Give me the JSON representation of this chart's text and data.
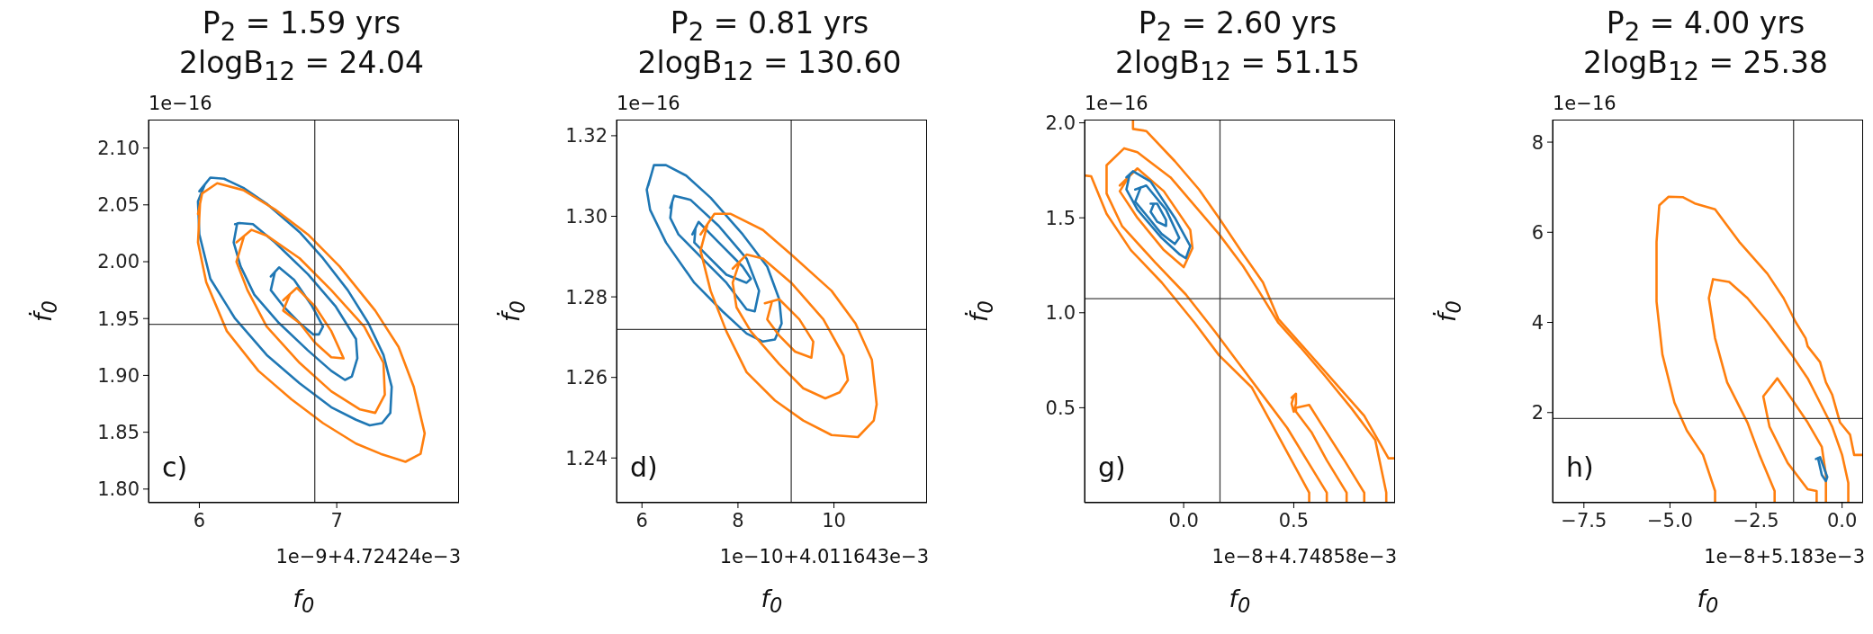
{
  "chart_data": [
    {
      "type": "line",
      "title": "P$_{2}$ = 1.59 yrs",
      "subtitle": "2logB$_{12}$ = 24.04",
      "xlabel": "f$_{0}$",
      "ylabel": "ḟ$_{0}$",
      "annotations": [
        "1e−16",
        "1e−9+4.72424e−3",
        "c)"
      ],
      "xlim": [
        5.63,
        7.89
      ],
      "xticks": [
        6,
        7
      ],
      "ylim": [
        1.788,
        2.125
      ],
      "yticks": [
        {
          "value": 1.8,
          "label": "1.80"
        },
        {
          "value": 1.85,
          "label": "1.85"
        },
        {
          "value": 1.9,
          "label": "1.90"
        },
        {
          "value": 1.95,
          "label": "1.95"
        },
        {
          "value": 2.0,
          "label": "2.00"
        },
        {
          "value": 2.05,
          "label": "2.05"
        },
        {
          "value": 2.1,
          "label": "2.10"
        }
      ],
      "ref_lines": [
        {
          "axis": "x",
          "value": 6.84,
          "color": "#404040"
        },
        {
          "axis": "y",
          "value": 1.945,
          "color": "#404040"
        }
      ],
      "series": [
        {
          "color": "#1f77b4",
          "x": [
            6.0,
            6.08,
            6.18,
            6.32,
            6.49,
            6.73,
            6.9,
            7.08,
            7.23,
            7.34,
            7.4,
            7.39,
            7.33,
            7.24,
            7.14,
            6.96,
            6.73,
            6.49,
            6.26,
            6.08,
            6.0,
            5.99,
            6.04
          ],
          "values": [
            2.062,
            2.074,
            2.073,
            2.065,
            2.051,
            2.026,
            2.003,
            1.975,
            1.946,
            1.918,
            1.89,
            1.867,
            1.858,
            1.856,
            1.861,
            1.872,
            1.893,
            1.918,
            1.95,
            1.985,
            2.024,
            2.053,
            2.068
          ]
        },
        {
          "color": "#1f77b4",
          "x": [
            6.26,
            6.29,
            6.39,
            6.55,
            6.79,
            6.99,
            7.14,
            7.15,
            7.11,
            7.06,
            6.96,
            6.79,
            6.58,
            6.4,
            6.3,
            6.25,
            6.275
          ],
          "values": [
            2.033,
            2.034,
            2.033,
            2.017,
            1.989,
            1.961,
            1.932,
            1.915,
            1.899,
            1.896,
            1.904,
            1.922,
            1.946,
            1.971,
            1.996,
            2.017,
            2.0335
          ]
        },
        {
          "color": "#1f77b4",
          "x": [
            6.52,
            6.58,
            6.69,
            6.82,
            6.9,
            6.87,
            6.83,
            6.73,
            6.61,
            6.52,
            6.55
          ],
          "values": [
            1.987,
            1.995,
            1.984,
            1.961,
            1.943,
            1.936,
            1.936,
            1.946,
            1.961,
            1.975,
            1.991
          ]
        },
        {
          "color": "#ff7f0e",
          "x": [
            5.99,
            6.02,
            6.13,
            6.32,
            6.55,
            6.79,
            7.02,
            7.28,
            7.45,
            7.56,
            7.64,
            7.61,
            7.5,
            7.32,
            7.14,
            6.9,
            6.67,
            6.43,
            6.2,
            6.05,
            5.99,
            6.005
          ],
          "values": [
            2.042,
            2.06,
            2.069,
            2.063,
            2.046,
            2.024,
            1.996,
            1.957,
            1.925,
            1.89,
            1.849,
            1.831,
            1.824,
            1.831,
            1.84,
            1.858,
            1.879,
            1.904,
            1.939,
            1.982,
            2.017,
            2.051
          ]
        },
        {
          "color": "#ff7f0e",
          "x": [
            6.27,
            6.38,
            6.49,
            6.73,
            6.96,
            7.2,
            7.34,
            7.35,
            7.28,
            7.17,
            6.96,
            6.73,
            6.49,
            6.35,
            6.27,
            6.325
          ],
          "values": [
            2.017,
            2.028,
            2.023,
            2.003,
            1.975,
            1.943,
            1.911,
            1.883,
            1.867,
            1.87,
            1.886,
            1.911,
            1.943,
            1.975,
            2.0,
            2.0225
          ]
        },
        {
          "color": "#ff7f0e",
          "x": [
            6.61,
            6.71,
            6.84,
            6.96,
            7.05,
            6.96,
            6.84,
            6.73,
            6.61,
            6.66
          ],
          "values": [
            1.966,
            1.977,
            1.961,
            1.939,
            1.915,
            1.916,
            1.929,
            1.946,
            1.957,
            1.9715
          ]
        }
      ]
    },
    {
      "type": "line",
      "title": "P$_{2}$ = 0.81 yrs",
      "subtitle": "2logB$_{12}$ = 130.60",
      "xlabel": "f$_{0}$",
      "ylabel": "ḟ$_{0}$",
      "annotations": [
        "1e−16",
        "1e−10+4.011643e−3",
        "d)"
      ],
      "xlim": [
        5.47,
        11.94
      ],
      "xticks": [
        6,
        8,
        10
      ],
      "ylim": [
        1.2289,
        1.324
      ],
      "yticks": [
        1.24,
        1.26,
        1.28,
        {
          "value": 1.3,
          "label": "1.30"
        },
        1.32
      ],
      "ref_lines": [
        {
          "axis": "x",
          "value": 9.11,
          "color": "#404040"
        },
        {
          "axis": "y",
          "value": 1.2719,
          "color": "#404040"
        }
      ],
      "series": [
        {
          "color": "#1f77b4",
          "x": [
            6.13,
            6.25,
            6.5,
            6.92,
            7.43,
            8.1,
            8.61,
            8.86,
            8.91,
            8.77,
            8.52,
            8.18,
            7.68,
            7.09,
            6.5,
            6.17,
            6.1,
            6.19
          ],
          "values": [
            1.3076,
            1.3127,
            1.3127,
            1.3101,
            1.3046,
            1.2955,
            1.2875,
            1.2794,
            1.2734,
            1.2694,
            1.2689,
            1.2709,
            1.2764,
            1.2835,
            1.2935,
            1.3016,
            1.3066,
            1.3102
          ]
        },
        {
          "color": "#1f77b4",
          "x": [
            6.59,
            6.67,
            7.01,
            7.6,
            8.18,
            8.44,
            8.35,
            8.18,
            7.76,
            7.26,
            6.76,
            6.59,
            6.63
          ],
          "values": [
            1.3021,
            1.3051,
            1.3041,
            1.2976,
            1.2895,
            1.2815,
            1.2764,
            1.2769,
            1.2835,
            1.2895,
            1.2955,
            1.2996,
            1.3036
          ]
        },
        {
          "color": "#1f77b4",
          "x": [
            7.05,
            7.18,
            7.6,
            8.1,
            8.27,
            8.18,
            7.76,
            7.34,
            7.09,
            7.115
          ],
          "values": [
            1.2955,
            1.2986,
            1.2935,
            1.2875,
            1.2845,
            1.2835,
            1.2855,
            1.2905,
            1.2935,
            1.297
          ]
        },
        {
          "color": "#ff7f0e",
          "x": [
            7.22,
            7.51,
            7.85,
            8.52,
            9.11,
            9.95,
            10.45,
            10.79,
            10.89,
            10.83,
            10.5,
            9.95,
            9.36,
            8.77,
            8.18,
            7.76,
            7.43,
            7.22,
            7.365
          ],
          "values": [
            1.2955,
            1.3006,
            1.3006,
            1.2966,
            1.2905,
            1.2815,
            1.2734,
            1.2644,
            1.2533,
            1.2493,
            1.2452,
            1.2457,
            1.2493,
            1.2543,
            1.2613,
            1.2714,
            1.2815,
            1.2915,
            1.298
          ]
        },
        {
          "color": "#ff7f0e",
          "x": [
            7.89,
            8.18,
            8.52,
            9.11,
            9.78,
            10.2,
            10.29,
            10.12,
            9.82,
            9.36,
            8.86,
            8.27,
            7.97,
            7.89,
            8.035
          ],
          "values": [
            1.287,
            1.2905,
            1.2895,
            1.2835,
            1.2744,
            1.2654,
            1.2593,
            1.2563,
            1.2548,
            1.2573,
            1.2633,
            1.2714,
            1.2774,
            1.2835,
            1.2887
          ]
        },
        {
          "color": "#ff7f0e",
          "x": [
            8.56,
            8.86,
            9.28,
            9.57,
            9.53,
            9.19,
            8.86,
            8.61,
            8.71
          ],
          "values": [
            1.2784,
            1.2794,
            1.2744,
            1.2689,
            1.2649,
            1.2664,
            1.2704,
            1.2744,
            1.2789
          ]
        }
      ]
    },
    {
      "type": "line",
      "title": "P$_{2}$ = 2.60 yrs",
      "subtitle": "2logB$_{12}$ = 51.15",
      "xlabel": "f$_{0}$",
      "ylabel": "ḟ$_{0}$",
      "annotations": [
        "1e−16",
        "1e−8+4.74858e−3",
        "g)"
      ],
      "xlim": [
        -0.45,
        0.96
      ],
      "xticks": [
        {
          "value": 0,
          "label": "0.0"
        },
        0.5
      ],
      "ylim": [
        0.0,
        2.017
      ],
      "yticks": [
        0.5,
        {
          "value": 1,
          "label": "1.0"
        },
        1.5,
        {
          "value": 2,
          "label": "2.0"
        }
      ],
      "ref_lines": [
        {
          "axis": "x",
          "value": 0.165,
          "color": "#404040"
        },
        {
          "axis": "y",
          "value": 1.074,
          "color": "#404040"
        }
      ],
      "series": [
        {
          "color": "#ff7f0e",
          "x": [
            -0.23,
            -0.23,
            -0.17,
            -0.04,
            0.07,
            0.16,
            0.27,
            0.36,
            0.43,
            0.56,
            0.69,
            0.82,
            0.93,
            0.96
          ],
          "values": [
            2.011,
            1.968,
            1.957,
            1.798,
            1.649,
            1.5,
            1.309,
            1.16,
            0.968,
            0.798,
            0.628,
            0.457,
            0.234,
            0.234
          ]
        },
        {
          "color": "#ff7f0e",
          "x": [
            -0.45,
            -0.42,
            -0.35,
            -0.24,
            -0.1,
            0.05,
            0.16,
            0.31,
            0.4,
            0.49,
            0.57,
            0.57
          ],
          "values": [
            1.723,
            1.719,
            1.521,
            1.33,
            1.16,
            0.947,
            0.777,
            0.606,
            0.415,
            0.223,
            0.053,
            0.0
          ]
        },
        {
          "color": "#ff7f0e",
          "x": [
            0.65,
            0.65,
            0.56,
            0.47,
            0.36,
            0.25,
            0.14,
            0.01,
            -0.13,
            -0.28,
            -0.35,
            -0.35,
            -0.27,
            -0.21,
            -0.06,
            0.05,
            0.16,
            0.27,
            0.34,
            0.43,
            0.53,
            0.64,
            0.76,
            0.87,
            0.92,
            0.92
          ],
          "values": [
            0.0,
            0.053,
            0.223,
            0.394,
            0.564,
            0.734,
            0.904,
            1.096,
            1.266,
            1.457,
            1.628,
            1.777,
            1.866,
            1.845,
            1.713,
            1.564,
            1.415,
            1.245,
            1.117,
            0.947,
            0.819,
            0.67,
            0.5,
            0.33,
            0.053,
            0.0
          ]
        },
        {
          "color": "#ff7f0e",
          "x": [
            0.74,
            0.74,
            0.65,
            0.58,
            0.51,
            0.51,
            0.57,
            0.63,
            0.73,
            0.82,
            0.82
          ],
          "values": [
            0.0,
            0.053,
            0.223,
            0.372,
            0.479,
            0.5,
            0.515,
            0.404,
            0.223,
            0.053,
            0.0
          ]
        },
        {
          "color": "#ff7f0e",
          "x": [
            0.49,
            0.51,
            0.51,
            0.5,
            0.49,
            0.5
          ],
          "values": [
            0.553,
            0.574,
            0.521,
            0.479,
            0.521,
            0.56
          ]
        },
        {
          "color": "#ff7f0e",
          "x": [
            -0.29,
            -0.21,
            -0.09,
            0.03,
            0.04,
            0.0,
            -0.09,
            -0.21,
            -0.29,
            -0.25
          ],
          "values": [
            1.67,
            1.76,
            1.64,
            1.436,
            1.34,
            1.24,
            1.33,
            1.5,
            1.64,
            1.715
          ]
        },
        {
          "color": "#1f77b4",
          "x": [
            -0.26,
            -0.23,
            -0.15,
            -0.04,
            0.03,
            0.01,
            -0.02,
            -0.1,
            -0.21,
            -0.26,
            -0.245
          ],
          "values": [
            1.713,
            1.745,
            1.691,
            1.5,
            1.351,
            1.287,
            1.309,
            1.394,
            1.543,
            1.649,
            1.729
          ]
        },
        {
          "color": "#1f77b4",
          "x": [
            -0.22,
            -0.17,
            -0.08,
            -0.02,
            -0.04,
            -0.1,
            -0.19,
            -0.22,
            -0.195
          ],
          "values": [
            1.649,
            1.67,
            1.543,
            1.394,
            1.362,
            1.415,
            1.543,
            1.585,
            1.66
          ]
        },
        {
          "color": "#1f77b4",
          "x": [
            -0.15,
            -0.12,
            -0.08,
            -0.08,
            -0.12,
            -0.15,
            -0.135
          ],
          "values": [
            1.574,
            1.574,
            1.489,
            1.457,
            1.479,
            1.532,
            1.574
          ]
        }
      ]
    },
    {
      "type": "line",
      "title": "P$_{2}$ = 4.00 yrs",
      "subtitle": "2logB$_{12}$ = 25.38",
      "xlabel": "f$_{0}$",
      "ylabel": "ḟ$_{0}$",
      "annotations": [
        "1e−16",
        "1e−8+5.183e−3",
        "h)"
      ],
      "xlim": [
        -8.41,
        0.61
      ],
      "xticks": [
        {
          "value": -7.5,
          "label": "−7.5"
        },
        {
          "value": -5,
          "label": "−5.0"
        },
        {
          "value": -2.5,
          "label": "−2.5"
        },
        {
          "value": 0,
          "label": "0.0"
        }
      ],
      "ylim": [
        0.0,
        8.5
      ],
      "yticks": [
        2,
        4,
        6,
        8
      ],
      "ref_lines": [
        {
          "axis": "x",
          "value": -1.41,
          "color": "#404040"
        },
        {
          "axis": "y",
          "value": 1.87,
          "color": "#404040"
        }
      ],
      "series": [
        {
          "color": "#ff7f0e",
          "x": [
            -3.69,
            -3.69,
            -4.04,
            -4.51,
            -4.87,
            -5.22,
            -5.39,
            -5.39,
            -5.31,
            -5.04,
            -4.63,
            -4.28,
            -3.69,
            -2.99,
            -2.17,
            -1.7,
            -1.35,
            -1.06,
            -1.0,
            -0.64,
            -0.47,
            -0.29,
            -0.06,
            0.23,
            0.35,
            0.61
          ],
          "values": [
            0.0,
            0.26,
            1.06,
            1.6,
            2.22,
            3.29,
            4.46,
            5.79,
            6.6,
            6.79,
            6.78,
            6.64,
            6.51,
            5.79,
            5.08,
            4.54,
            4.01,
            3.65,
            3.47,
            3.12,
            2.67,
            2.4,
            1.78,
            1.51,
            1.06,
            1.06
          ]
        },
        {
          "color": "#ff7f0e",
          "x": [
            -1.96,
            -1.96,
            -2.4,
            -2.75,
            -3.34,
            -3.69,
            -3.87,
            -3.75,
            -3.28,
            -2.75,
            -2.17,
            -1.47,
            -1.0,
            -0.64,
            -0.29,
            0.0,
            0.18,
            0.18
          ],
          "values": [
            0.0,
            0.26,
            1.06,
            1.78,
            2.67,
            3.65,
            4.54,
            4.96,
            4.9,
            4.54,
            4.01,
            3.29,
            2.76,
            2.22,
            1.69,
            1.06,
            0.44,
            0.0
          ]
        },
        {
          "color": "#ff7f0e",
          "x": [
            -0.74,
            -0.74,
            -1.0,
            -1.58,
            -2.11,
            -2.29,
            -1.88,
            -1.47,
            -1.0,
            -0.59,
            -0.47,
            -0.47
          ],
          "values": [
            0.0,
            0.26,
            0.3,
            0.88,
            1.69,
            2.36,
            2.76,
            2.31,
            1.78,
            1.24,
            0.62,
            0.0
          ]
        },
        {
          "color": "#1f77b4",
          "x": [
            -0.76,
            -0.64,
            -0.43,
            -0.47,
            -0.59,
            -0.7
          ],
          "values": [
            0.97,
            1.01,
            0.57,
            0.48,
            0.62,
            0.99
          ]
        }
      ]
    }
  ]
}
